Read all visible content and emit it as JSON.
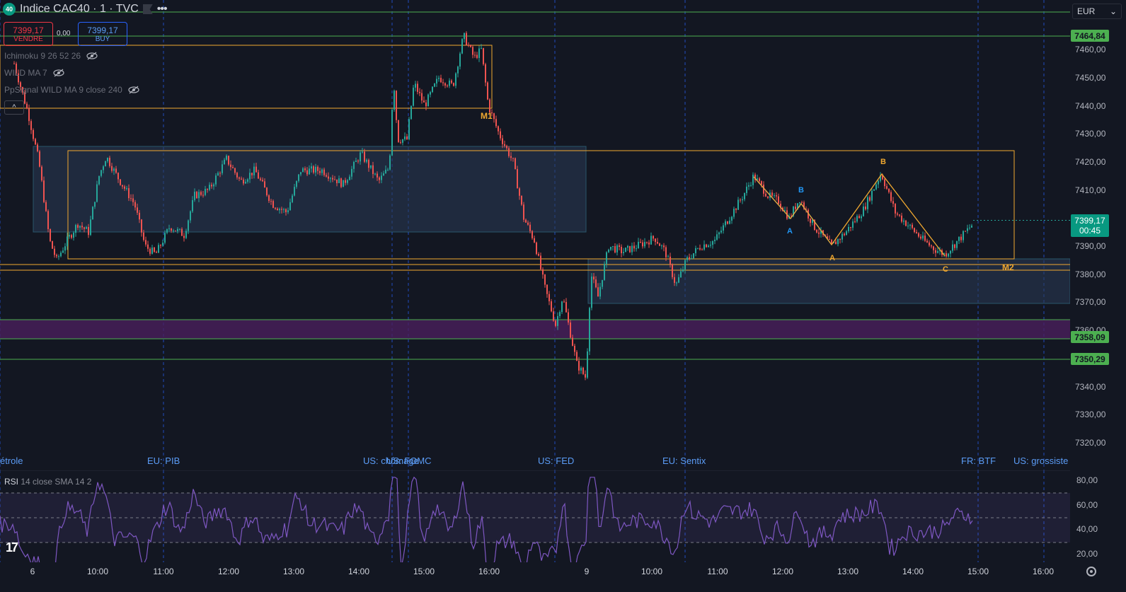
{
  "header": {
    "symbol_badge": "40",
    "title": "Indice CAC40 · 1 · TVC"
  },
  "trade": {
    "sell_price": "7399,17",
    "sell_label": "VENDRE",
    "spread": "0,00",
    "buy_price": "7399,17",
    "buy_label": "BUY"
  },
  "indicators": [
    {
      "label": "Ichimoku 9 26 52 26"
    },
    {
      "label": "WILD MA 7"
    },
    {
      "label": "PpSignal WILD MA 9 close 240"
    }
  ],
  "collapse_label": "^",
  "currency": {
    "label": "EUR",
    "arrow": "⌄"
  },
  "price_axis": {
    "ticks": [
      "7460,00",
      "7450,00",
      "7440,00",
      "7430,00",
      "7420,00",
      "7410,00",
      "7390,00",
      "7380,00",
      "7370,00",
      "7360,00",
      "7340,00",
      "7330,00",
      "7320,00"
    ],
    "level_tags": [
      {
        "text": "7464,84",
        "color": "#4caf50"
      },
      {
        "text": "7358,09",
        "color": "#4caf50"
      },
      {
        "text": "7350,29",
        "color": "#4caf50"
      }
    ],
    "current_price": "7399,17",
    "countdown": "00:45"
  },
  "events": [
    {
      "text": "étrole"
    },
    {
      "text": "EU: PIB"
    },
    {
      "text": "US: chômage"
    },
    {
      "text": "US: FOMC"
    },
    {
      "text": "US: FED"
    },
    {
      "text": "EU: Sentix"
    },
    {
      "text": "FR: BTF"
    },
    {
      "text": "US: grossiste"
    }
  ],
  "annotations": {
    "m1": "M1",
    "m2": "M2",
    "blue_a": "A",
    "blue_b": "B",
    "orange_a": "A",
    "orange_b": "B",
    "orange_c": "C"
  },
  "rsi": {
    "title": "RSI",
    "params": "14 close SMA 14 2",
    "ticks": [
      "80,00",
      "60,00",
      "40,00",
      "20,00"
    ]
  },
  "time_axis": {
    "labels": [
      "6",
      "10:00",
      "11:00",
      "12:00",
      "13:00",
      "14:00",
      "15:00",
      "16:00",
      "9",
      "10:00",
      "11:00",
      "12:00",
      "13:00",
      "14:00",
      "15:00",
      "16:00"
    ]
  },
  "colors": {
    "background": "#131722",
    "up": "#26a69a",
    "down": "#ef5350",
    "zone_orange": "#f0a830",
    "zone_blue": "#3d6f8a",
    "level_green": "#4caf50",
    "rsi_line": "#7e57c2"
  }
}
